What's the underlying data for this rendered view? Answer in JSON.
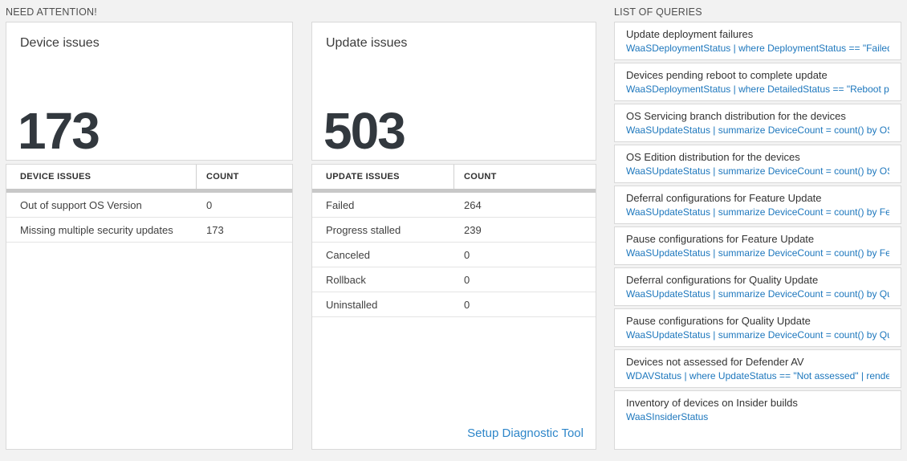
{
  "colors": {
    "page_background": "#f2f2f2",
    "query_blue": "#1d77bd",
    "link_blue": "#2e86c9",
    "number_ink": "#32383e",
    "header_divider_gray": "#c8c8c8"
  },
  "need_attention": {
    "header": "NEED ATTENTION!",
    "device_tile": {
      "title": "Device issues",
      "count": "173",
      "table": {
        "col_issue": "DEVICE ISSUES",
        "col_count": "COUNT",
        "rows": [
          {
            "issue": "Out of support OS Version",
            "count": "0"
          },
          {
            "issue": "Missing multiple security updates",
            "count": "173"
          }
        ]
      }
    },
    "update_tile": {
      "title": "Update issues",
      "count": "503",
      "table": {
        "col_issue": "UPDATE ISSUES",
        "col_count": "COUNT",
        "rows": [
          {
            "issue": "Failed",
            "count": "264"
          },
          {
            "issue": "Progress stalled",
            "count": "239"
          },
          {
            "issue": "Canceled",
            "count": "0"
          },
          {
            "issue": "Rollback",
            "count": "0"
          },
          {
            "issue": "Uninstalled",
            "count": "0"
          }
        ]
      },
      "footer_link": "Setup Diagnostic Tool"
    }
  },
  "queries": {
    "header": "LIST OF QUERIES",
    "items": [
      {
        "title": "Update deployment failures",
        "query": "WaaSDeploymentStatus | where DeploymentStatus == \"Failed\" |..."
      },
      {
        "title": "Devices pending reboot to complete update",
        "query": "WaaSDeploymentStatus | where DetailedStatus == \"Reboot pend..."
      },
      {
        "title": "OS Servicing branch distribution for the devices",
        "query": "WaaSUpdateStatus | summarize DeviceCount = count() by OSSer..."
      },
      {
        "title": "OS Edition distribution for the devices",
        "query": "WaaSUpdateStatus | summarize DeviceCount = count() by OSEdit..."
      },
      {
        "title": "Deferral configurations for Feature Update",
        "query": "WaaSUpdateStatus | summarize DeviceCount = count() by Featur..."
      },
      {
        "title": "Pause configurations for Feature Update",
        "query": "WaaSUpdateStatus | summarize DeviceCount = count() by Featur..."
      },
      {
        "title": "Deferral configurations for Quality Update",
        "query": "WaaSUpdateStatus | summarize DeviceCount = count() by Qualit..."
      },
      {
        "title": "Pause configurations for Quality Update",
        "query": "WaaSUpdateStatus | summarize DeviceCount = count() by Qualit..."
      },
      {
        "title": "Devices not assessed for Defender AV",
        "query": "WDAVStatus | where UpdateStatus == \"Not assessed\" | render ta..."
      },
      {
        "title": "Inventory of devices on Insider builds",
        "query": "WaaSInsiderStatus"
      }
    ]
  }
}
